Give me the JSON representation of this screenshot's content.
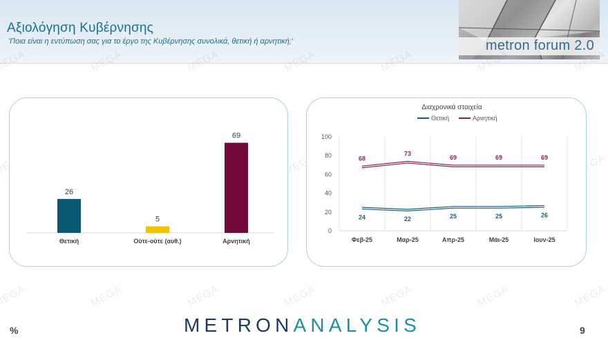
{
  "header": {
    "title": "Αξιολόγηση Κυβέρνησης",
    "subtitle": "'Ποια είναι η εντύπωση σας για το έργο της Κυβέρνησης συνολικά, θετική ή αρνητική;'",
    "forum_logo_text": "metron forum 2.0"
  },
  "watermark_text": "MEGA",
  "footer": {
    "logo_part1": "METRON",
    "logo_part2": "ANALYSIS",
    "percent_symbol": "%",
    "page_number": "9"
  },
  "colors": {
    "positive": "#0b5a73",
    "neutral": "#f5c000",
    "negative": "#730a3c",
    "title": "#1d6f8e",
    "panel_border": "#a9d7d3"
  },
  "chart_data": [
    {
      "type": "bar",
      "title": "",
      "categories": [
        "Θετική",
        "Ούτε-ούτε (αυθ.)",
        "Αρνητική"
      ],
      "values": [
        26,
        5,
        69
      ],
      "value_labels": [
        "26",
        "5",
        "69"
      ],
      "bar_colors": [
        "#0b5a73",
        "#f5c000",
        "#730a3c"
      ],
      "ylim": [
        0,
        100
      ],
      "grid": false
    },
    {
      "type": "line",
      "title": "Διαχρονικά στοιχεία",
      "categories": [
        "Φεβ-25",
        "Μαρ-25",
        "Απρ-25",
        "Μάι-25",
        "Ιουν-25"
      ],
      "y_ticks": [
        "0",
        "20",
        "40",
        "60",
        "80",
        "100"
      ],
      "ylim": [
        0,
        100
      ],
      "grid": true,
      "legend_position": "top",
      "series": [
        {
          "name": "Θετική",
          "values": [
            24,
            22,
            25,
            25,
            26
          ],
          "labels": [
            "24",
            "22",
            "25",
            "25",
            "26"
          ],
          "color": "#1c5f7a"
        },
        {
          "name": "Αρνητική",
          "values": [
            68,
            73,
            69,
            69,
            69
          ],
          "labels": [
            "68",
            "73",
            "69",
            "69",
            "69"
          ],
          "color": "#8a2253"
        }
      ]
    }
  ]
}
